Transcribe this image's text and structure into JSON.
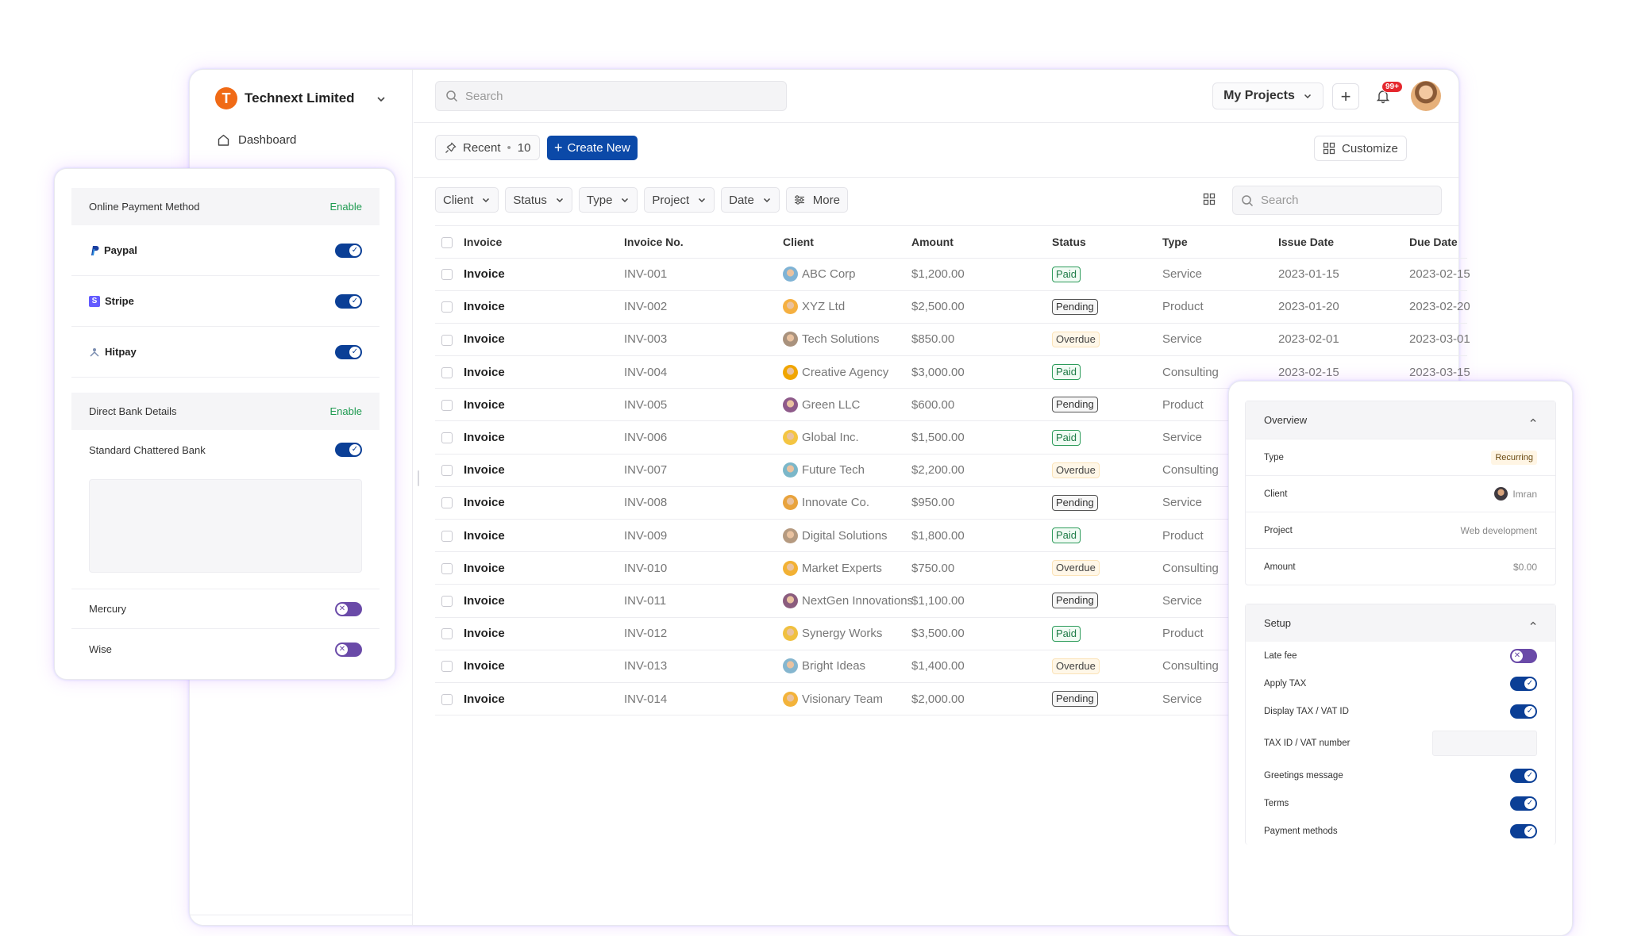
{
  "app": {
    "org_name": "Technext Limited",
    "org_initial": "T",
    "nav": [
      {
        "label": "Dashboard"
      }
    ],
    "search_placeholder": "Search",
    "my_projects": "My Projects",
    "notifications_badge": "99+"
  },
  "toolbar": {
    "recent_label": "Recent",
    "recent_count": "10",
    "create_label": "Create New",
    "customize_label": "Customize"
  },
  "filters": [
    "Client",
    "Status",
    "Type",
    "Project",
    "Date",
    "More"
  ],
  "table_search_placeholder": "Search",
  "table": {
    "columns": [
      "Invoice",
      "Invoice No.",
      "Client",
      "Amount",
      "Status",
      "Type",
      "Issue Date",
      "Due Date"
    ],
    "rows": [
      {
        "type": "Invoice",
        "no": "INV-001",
        "client": "ABC Corp",
        "amount": "$1,200.00",
        "status": "Paid",
        "kind": "Service",
        "issue": "2023-01-15",
        "due": "2023-02-15"
      },
      {
        "type": "Invoice",
        "no": "INV-002",
        "client": "XYZ Ltd",
        "amount": "$2,500.00",
        "status": "Pending",
        "kind": "Product",
        "issue": "2023-01-20",
        "due": "2023-02-20"
      },
      {
        "type": "Invoice",
        "no": "INV-003",
        "client": "Tech Solutions",
        "amount": "$850.00",
        "status": "Overdue",
        "kind": "Service",
        "issue": "2023-02-01",
        "due": "2023-03-01"
      },
      {
        "type": "Invoice",
        "no": "INV-004",
        "client": "Creative Agency",
        "amount": "$3,000.00",
        "status": "Paid",
        "kind": "Consulting",
        "issue": "2023-02-15",
        "due": "2023-03-15"
      },
      {
        "type": "Invoice",
        "no": "INV-005",
        "client": "Green LLC",
        "amount": "$600.00",
        "status": "Pending",
        "kind": "Product",
        "issue": "",
        "due": ""
      },
      {
        "type": "Invoice",
        "no": "INV-006",
        "client": "Global Inc.",
        "amount": "$1,500.00",
        "status": "Paid",
        "kind": "Service",
        "issue": "",
        "due": ""
      },
      {
        "type": "Invoice",
        "no": "INV-007",
        "client": "Future Tech",
        "amount": "$2,200.00",
        "status": "Overdue",
        "kind": "Consulting",
        "issue": "",
        "due": ""
      },
      {
        "type": "Invoice",
        "no": "INV-008",
        "client": "Innovate Co.",
        "amount": "$950.00",
        "status": "Pending",
        "kind": "Service",
        "issue": "",
        "due": ""
      },
      {
        "type": "Invoice",
        "no": "INV-009",
        "client": "Digital Solutions",
        "amount": "$1,800.00",
        "status": "Paid",
        "kind": "Product",
        "issue": "",
        "due": ""
      },
      {
        "type": "Invoice",
        "no": "INV-010",
        "client": "Market Experts",
        "amount": "$750.00",
        "status": "Overdue",
        "kind": "Consulting",
        "issue": "",
        "due": ""
      },
      {
        "type": "Invoice",
        "no": "INV-011",
        "client": "NextGen Innovations",
        "amount": "$1,100.00",
        "status": "Pending",
        "kind": "Service",
        "issue": "",
        "due": ""
      },
      {
        "type": "Invoice",
        "no": "INV-012",
        "client": "Synergy Works",
        "amount": "$3,500.00",
        "status": "Paid",
        "kind": "Product",
        "issue": "",
        "due": ""
      },
      {
        "type": "Invoice",
        "no": "INV-013",
        "client": "Bright Ideas",
        "amount": "$1,400.00",
        "status": "Overdue",
        "kind": "Consulting",
        "issue": "",
        "due": ""
      },
      {
        "type": "Invoice",
        "no": "INV-014",
        "client": "Visionary Team",
        "amount": "$2,000.00",
        "status": "Pending",
        "kind": "Service",
        "issue": "",
        "due": ""
      }
    ]
  },
  "payment_panel": {
    "online": {
      "title": "Online Payment Method",
      "action": "Enable",
      "methods": [
        {
          "name": "Paypal",
          "on": true
        },
        {
          "name": "Stripe",
          "on": true
        },
        {
          "name": "Hitpay",
          "on": true
        }
      ]
    },
    "bank": {
      "title": "Direct Bank Details",
      "action": "Enable",
      "methods": [
        {
          "name": "Standard Chattered Bank",
          "on": true
        },
        {
          "name": "Mercury",
          "on": false
        },
        {
          "name": "Wise",
          "on": false
        }
      ]
    }
  },
  "settings_panel": {
    "overview": {
      "title": "Overview",
      "type_label": "Type",
      "type_value": "Recurring",
      "client_label": "Client",
      "client_value": "Imran",
      "project_label": "Project",
      "project_value": "Web development",
      "amount_label": "Amount",
      "amount_value": "$0.00"
    },
    "setup": {
      "title": "Setup",
      "items": [
        {
          "label": "Late fee",
          "on": false
        },
        {
          "label": "Apply TAX",
          "on": true
        },
        {
          "label": "Display TAX / VAT ID",
          "on": true
        },
        {
          "label": "TAX ID / VAT number",
          "input": true
        },
        {
          "label": "Greetings message",
          "on": true
        },
        {
          "label": "Terms",
          "on": true
        },
        {
          "label": "Payment methods",
          "on": true
        }
      ]
    }
  },
  "colors": {
    "brand_orange": "#f06a16",
    "primary_blue": "#0b49a8",
    "toggle_on": "#0b3f96",
    "toggle_off": "#6a4aa8",
    "paid_green": "#1c7a45",
    "enable_green": "#1e9a50"
  }
}
